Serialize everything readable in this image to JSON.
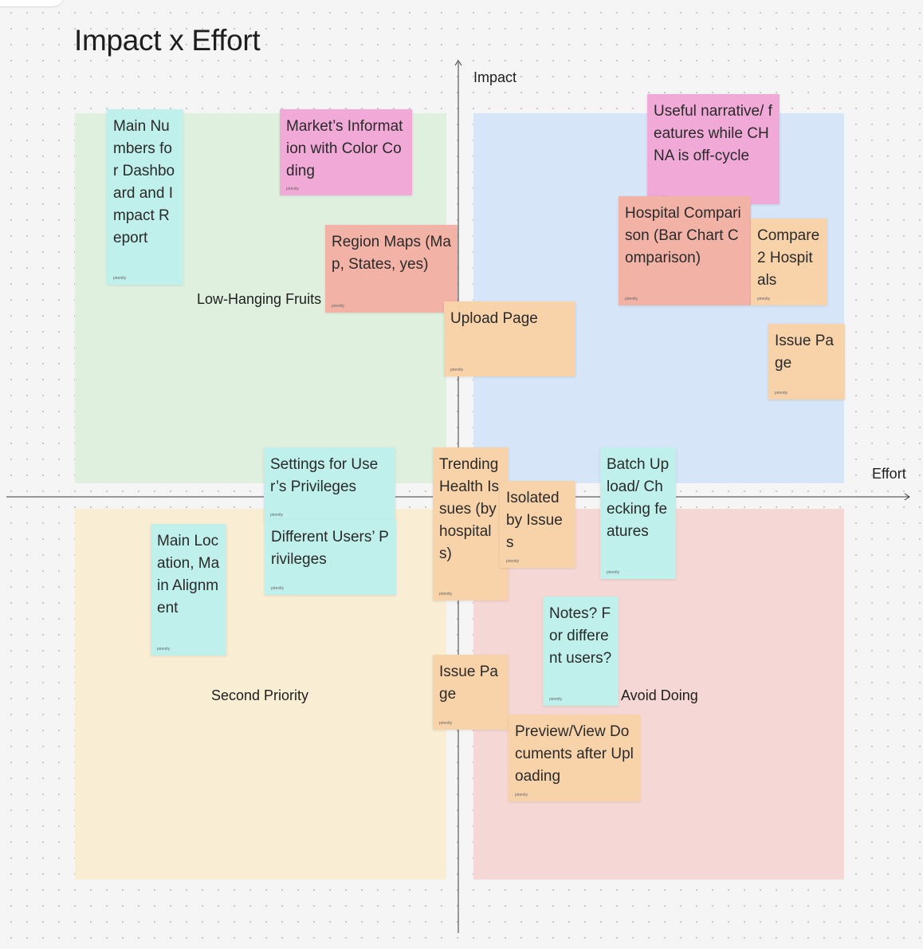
{
  "board": {
    "title": "Impact x Effort",
    "axes": {
      "y_label": "Impact",
      "x_label": "Effort"
    },
    "quadrants": {
      "top_left": {
        "label": "Low-Hanging Fruits",
        "color": "#dff1de"
      },
      "top_right": {
        "label": "",
        "color": "#d6e6f8"
      },
      "bottom_left": {
        "label": "Second Priority",
        "color": "#f9eed3"
      },
      "bottom_right": {
        "label": "Avoid Doing",
        "color": "#f5d8d5"
      }
    }
  },
  "note_colors": {
    "cyan": "#bff0ec",
    "pink": "#f1aad8",
    "salmon": "#f2b2a6",
    "orange": "#f8d3aa"
  },
  "note_author_tag": "pirenity",
  "notes": [
    {
      "text": "Main Numbers for Dashboard and Impact Report",
      "color": "cyan"
    },
    {
      "text": "Market’s Information with Color Coding",
      "color": "pink"
    },
    {
      "text": "Region Maps (Map, States, yes)",
      "color": "salmon"
    },
    {
      "text": "Useful narrative/ features while CHNA is off-cycle",
      "color": "pink"
    },
    {
      "text": "Hospital Comparison (Bar Chart Comparison)",
      "color": "salmon"
    },
    {
      "text": "Compare 2 Hospitals",
      "color": "orange"
    },
    {
      "text": "Upload Page",
      "color": "orange"
    },
    {
      "text": "Issue Page",
      "color": "orange"
    },
    {
      "text": "Settings for User’s Privileges",
      "color": "cyan"
    },
    {
      "text": "Different Users’ Privileges",
      "color": "cyan"
    },
    {
      "text": "Trending Health Issues (by hospitals)",
      "color": "orange"
    },
    {
      "text": "Isolated by Issues",
      "color": "orange"
    },
    {
      "text": "Batch Upload/ Checking features",
      "color": "cyan"
    },
    {
      "text": "Main Location, Main Alignment",
      "color": "cyan"
    },
    {
      "text": "Notes? For different users?",
      "color": "cyan"
    },
    {
      "text": "Issue Page",
      "color": "orange"
    },
    {
      "text": "Preview/View Documents after Uploading",
      "color": "orange"
    }
  ]
}
